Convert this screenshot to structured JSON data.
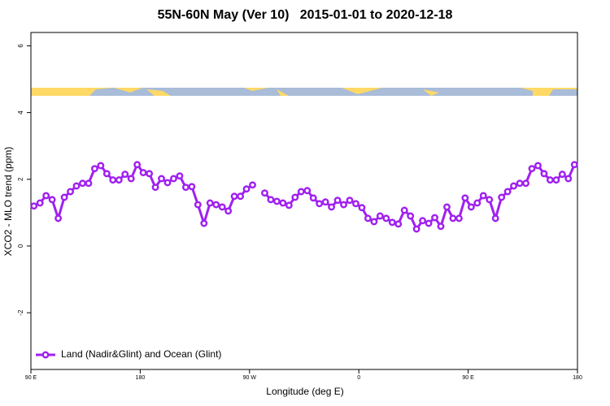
{
  "chart_data": {
    "type": "line",
    "title": "55N-60N May (Ver 10)   2015-01-01 to 2020-12-18",
    "x_label": "Longitude (deg E)",
    "y_label": "XCO2 - MLO trend (ppm)",
    "xlim": [
      90,
      540
    ],
    "xticks": [
      {
        "value": 90,
        "label": "90 E"
      },
      180,
      {
        "value": 270,
        "label": "90 W"
      },
      {
        "value": 360,
        "label": "0"
      },
      {
        "value": 450,
        "label": "90 E"
      },
      {
        "value": 540,
        "label": "180"
      }
    ],
    "ylim": [
      -3.7,
      6.4
    ],
    "yticks": [
      -2,
      0,
      2,
      4,
      6
    ],
    "legend": "bottom-left",
    "series": [
      {
        "name": "Land (Nadir&Glint) and Ocean (Glint)",
        "color": "#a020f0",
        "x": [
          92.5,
          97.5,
          102.5,
          107.5,
          112.5,
          117.5,
          122.5,
          127.5,
          132.5,
          137.5,
          142.5,
          147.5,
          152.5,
          157.5,
          162.5,
          167.5,
          172.5,
          177.5,
          182.5,
          187.5,
          192.5,
          197.5,
          202.5,
          207.5,
          212.5,
          217.5,
          222.5,
          227.5,
          232.5,
          237.5,
          242.5,
          247.5,
          252.5,
          257.5,
          262.5,
          267.5,
          272.5,
          277.5,
          282.5,
          287.5,
          292.5,
          297.5,
          302.5,
          307.5,
          312.5,
          317.5,
          322.5,
          327.5,
          332.5,
          337.5,
          342.5,
          347.5,
          352.5,
          357.5,
          362.5,
          367.5,
          372.5,
          377.5,
          382.5,
          387.5,
          392.5,
          397.5,
          402.5,
          407.5,
          412.5,
          417.5,
          422.5,
          427.5,
          432.5,
          437.5,
          442.5,
          447.5,
          452.5,
          457.5,
          462.5,
          467.5,
          472.5,
          477.5,
          482.5,
          487.5,
          492.5,
          497.5,
          502.5,
          507.5,
          512.5,
          517.5,
          522.5,
          527.5,
          532.5,
          537.5
        ],
        "values": [
          1.2,
          1.29,
          1.51,
          1.39,
          0.83,
          1.46,
          1.63,
          1.8,
          1.88,
          1.88,
          2.32,
          2.41,
          2.17,
          1.98,
          1.98,
          2.15,
          2.02,
          2.44,
          2.2,
          2.17,
          1.76,
          2.02,
          1.9,
          2.02,
          2.1,
          1.76,
          1.78,
          1.24,
          0.68,
          1.29,
          1.24,
          1.17,
          1.05,
          1.49,
          1.49,
          1.71,
          1.83,
          null,
          1.59,
          1.39,
          1.34,
          1.29,
          1.22,
          1.46,
          1.63,
          1.66,
          1.44,
          1.27,
          1.32,
          1.17,
          1.37,
          1.24,
          1.37,
          1.27,
          1.15,
          0.83,
          0.73,
          0.9,
          0.83,
          0.71,
          0.66,
          1.07,
          0.9,
          0.51,
          0.76,
          0.68,
          0.85,
          0.59,
          1.17,
          0.83,
          0.83,
          1.44,
          1.17,
          1.29,
          1.51,
          1.39,
          0.83,
          1.46,
          1.63,
          1.8,
          1.88,
          1.88,
          2.32,
          2.41,
          2.17,
          1.98,
          1.98,
          2.15,
          2.02,
          2.44
        ]
      }
    ]
  }
}
